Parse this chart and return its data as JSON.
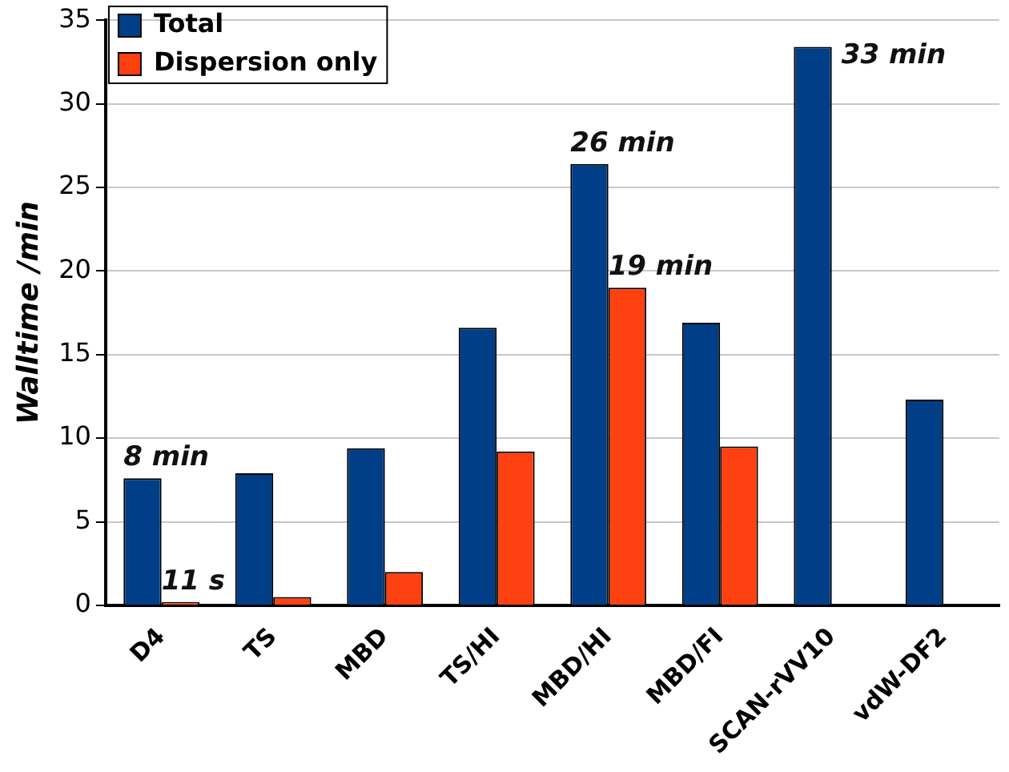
{
  "chart_data": {
    "type": "bar",
    "categories": [
      "D4",
      "TS",
      "MBD",
      "TS/HI",
      "MBD/HI",
      "MBD/FI",
      "SCAN-rVV10",
      "vdW-DF2"
    ],
    "series": [
      {
        "name": "Total",
        "color": "#003f87",
        "values": [
          7.6,
          7.9,
          9.4,
          16.6,
          26.4,
          16.9,
          33.4,
          12.3
        ]
      },
      {
        "name": "Dispersion only",
        "color": "#ff4010",
        "values": [
          0.2,
          0.5,
          2.0,
          9.2,
          19.0,
          9.5,
          null,
          null
        ]
      }
    ],
    "ylabel": "Walltime /min",
    "ylim": [
      0,
      35
    ],
    "yticks": [
      0,
      5,
      10,
      15,
      20,
      25,
      30,
      35
    ],
    "grid": "y",
    "legend": "top left",
    "annotations": [
      {
        "text": "8 min",
        "x": "D4",
        "y": 7.6
      },
      {
        "text": "11 s",
        "x": "D4",
        "y": 0.2
      },
      {
        "text": "26 min",
        "x": "MBD/HI",
        "y": 26.4
      },
      {
        "text": "19 min",
        "x": "MBD/HI",
        "y": 19.0
      },
      {
        "text": "33 min",
        "x": "SCAN-rVV10",
        "y": 33.4
      }
    ]
  }
}
